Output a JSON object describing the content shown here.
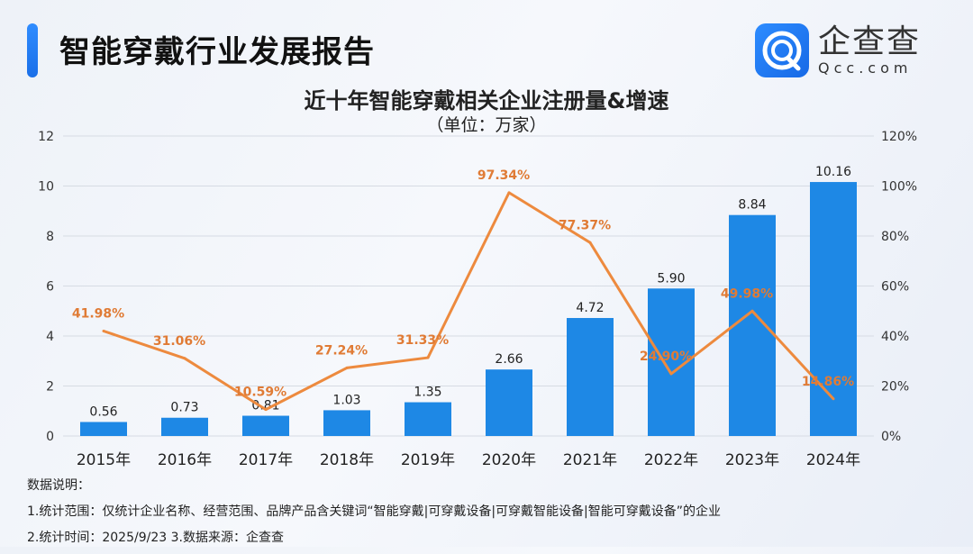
{
  "header": {
    "report_title": "智能穿戴行业发展报告",
    "logo_cn": "企查查",
    "logo_en": "Qcc.com"
  },
  "chart_data": {
    "type": "bar+line",
    "title": "近十年智能穿戴相关企业注册量&增速",
    "subtitle": "（单位：万家）",
    "categories": [
      "2015年",
      "2016年",
      "2017年",
      "2018年",
      "2019年",
      "2020年",
      "2021年",
      "2022年",
      "2023年",
      "2024年"
    ],
    "series": [
      {
        "kind": "bar",
        "axis": "left",
        "color": "#1e88e5",
        "values": [
          0.56,
          0.73,
          0.81,
          1.03,
          1.35,
          2.66,
          4.72,
          5.9,
          8.84,
          10.16
        ],
        "labels": [
          "0.56",
          "0.73",
          "0.81",
          "1.03",
          "1.35",
          "2.66",
          "4.72",
          "5.90",
          "8.84",
          "10.16"
        ]
      },
      {
        "kind": "line",
        "axis": "right",
        "color": "#ed8a3e",
        "values": [
          41.98,
          31.06,
          10.59,
          27.24,
          31.33,
          97.34,
          77.37,
          24.9,
          49.98,
          14.86
        ],
        "labels": [
          "41.98%",
          "31.06%",
          "10.59%",
          "27.24%",
          "31.33%",
          "97.34%",
          "77.37%",
          "24.90%",
          "49.98%",
          "14.86%"
        ]
      }
    ],
    "y_left": {
      "range": [
        0,
        12
      ],
      "ticks": [
        "0",
        "2",
        "4",
        "6",
        "8",
        "10",
        "12"
      ]
    },
    "y_right": {
      "range": [
        0,
        120
      ],
      "ticks": [
        "0%",
        "20%",
        "40%",
        "60%",
        "80%",
        "100%",
        "120%"
      ]
    },
    "grid": true
  },
  "notes": {
    "heading": "数据说明：",
    "line1": "1.统计范围：仅统计企业名称、经营范围、品牌产品含关键词“智能穿戴|可穿戴设备|可穿戴智能设备|智能可穿戴设备”的企业",
    "line2": " 2.统计时间：2025/9/23 3.数据来源：企查查"
  }
}
